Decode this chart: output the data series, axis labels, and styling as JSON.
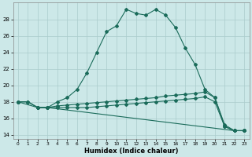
{
  "xlabel": "Humidex (Indice chaleur)",
  "bg_color": "#cce8e8",
  "grid_color": "#aacccc",
  "line_color": "#1a6b5a",
  "xlim": [
    -0.5,
    23.5
  ],
  "ylim": [
    13.5,
    30.0
  ],
  "yticks": [
    14,
    16,
    18,
    20,
    22,
    24,
    26,
    28
  ],
  "xticks": [
    0,
    1,
    2,
    3,
    4,
    5,
    6,
    7,
    8,
    9,
    10,
    11,
    12,
    13,
    14,
    15,
    16,
    17,
    18,
    19,
    20,
    21,
    22,
    23
  ],
  "line1_x": [
    0,
    1,
    2,
    3,
    4,
    5,
    6,
    7,
    8,
    9,
    10,
    11,
    12,
    13,
    14,
    15,
    16,
    17,
    18,
    19,
    20,
    21,
    22,
    23
  ],
  "line1_y": [
    18,
    18,
    17.3,
    17.3,
    18,
    18.5,
    19.5,
    21.5,
    24,
    26.5,
    27.2,
    29.2,
    28.7,
    28.5,
    29.2,
    28.5,
    27.0,
    24.5,
    22.5,
    19.5,
    18.5,
    15.0,
    14.5,
    14.5
  ],
  "line2_x": [
    0,
    1,
    2,
    3,
    4,
    5,
    6,
    7,
    8,
    9,
    10,
    11,
    12,
    13,
    14,
    15,
    16,
    17,
    18,
    19,
    20,
    21,
    22,
    23
  ],
  "line2_y": [
    18,
    18,
    17.3,
    17.3,
    17.5,
    17.6,
    17.7,
    17.8,
    17.9,
    18.0,
    18.1,
    18.2,
    18.3,
    18.4,
    18.5,
    18.7,
    18.8,
    18.9,
    19.0,
    19.2,
    18.5,
    15.2,
    14.5,
    14.5
  ],
  "line3_x": [
    0,
    1,
    2,
    3,
    4,
    5,
    6,
    7,
    8,
    9,
    10,
    11,
    12,
    13,
    14,
    15,
    16,
    17,
    18,
    19,
    20,
    21,
    22,
    23
  ],
  "line3_y": [
    18,
    18,
    17.3,
    17.3,
    17.3,
    17.3,
    17.3,
    17.3,
    17.4,
    17.5,
    17.6,
    17.7,
    17.8,
    17.9,
    18.0,
    18.1,
    18.2,
    18.3,
    18.4,
    18.6,
    18.0,
    15.0,
    14.5,
    14.5
  ],
  "line4_x": [
    0,
    2,
    3,
    22,
    23
  ],
  "line4_y": [
    18,
    17.3,
    17.3,
    14.5,
    14.5
  ]
}
